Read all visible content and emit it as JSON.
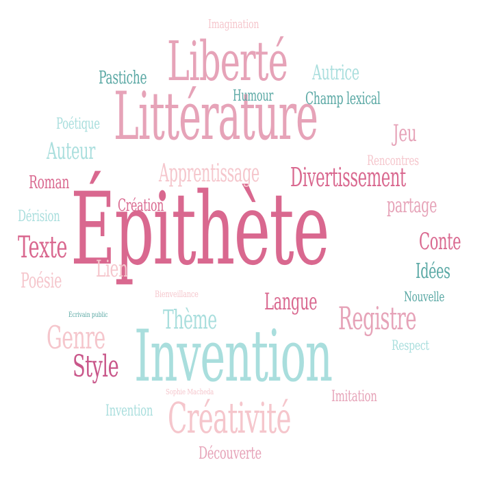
{
  "colors": {
    "pink_dark": "#d9688f",
    "pink_mid": "#e6a3b8",
    "pink_light": "#f5c6cc",
    "teal_dark": "#5aa8a4",
    "teal_light": "#a9dedd"
  },
  "words": {
    "epithete": "Épithète",
    "litterature": "Littérature",
    "invention_big": "Invention",
    "liberte": "Liberté",
    "creativite": "Créativité",
    "divertissement": "Divertissement",
    "registre": "Registre",
    "apprentissage": "Apprentissage",
    "theme": "Thème",
    "genre": "Genre",
    "style": "Style",
    "langue": "Langue",
    "texte": "Texte",
    "conte": "Conte",
    "auteur": "Auteur",
    "autrice": "Autrice",
    "partage": "partage",
    "jeu": "Jeu",
    "poesie": "Poésie",
    "lien": "Lien",
    "idees": "Idées",
    "roman": "Roman",
    "pastiche": "Pastiche",
    "champ_lexical": "Champ lexical",
    "humour": "Humour",
    "creation": "Création",
    "poetique": "Poétique",
    "derision": "Dérision",
    "rencontres": "Rencontres",
    "imagination": "Imagination",
    "nouvelle": "Nouvelle",
    "imitation": "Imitation",
    "decouverte": "Découverte",
    "invention_small": "Invention",
    "respect": "Respect",
    "bienveillance": "Bienveillance",
    "ecrivain_public": "Écrivain public",
    "sophie_macheda": "Sophie Macheda"
  }
}
